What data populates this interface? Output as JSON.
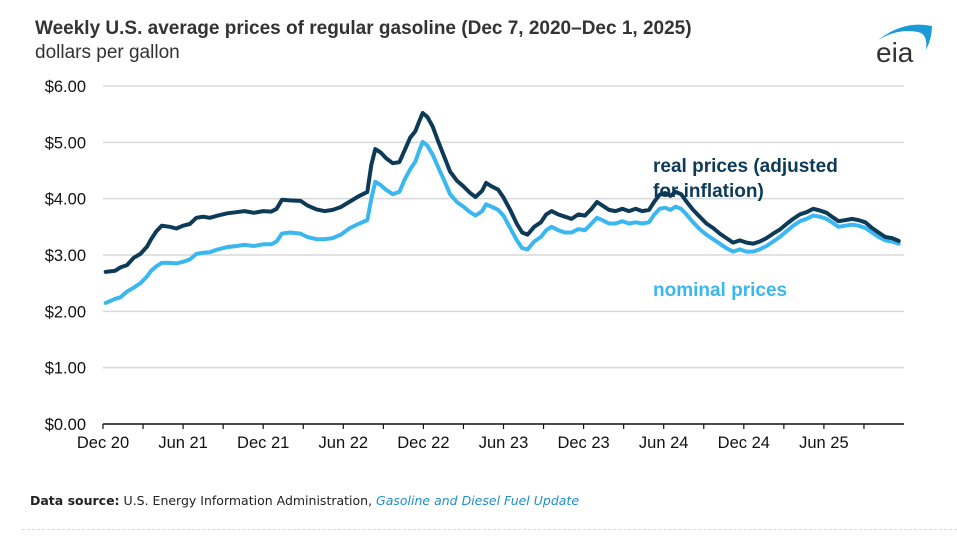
{
  "header": {
    "title": "Weekly U.S. average prices of regular gasoline (Dec 7, 2020–Dec 1, 2025)",
    "subtitle": "dollars per gallon",
    "logo_text": "eia"
  },
  "footer": {
    "source_label": "Data source:",
    "source_text": "U.S. Energy Information Administration,",
    "source_link": "Gasoline and Diesel Fuel Update"
  },
  "colors": {
    "real": "#0c3a57",
    "nominal": "#3bb7f0",
    "grid": "#d9d9d9",
    "axis": "#111111",
    "logo_arc": "#1a9ad9",
    "logo_text": "#333333"
  },
  "chart_data": {
    "type": "line",
    "title": "Weekly U.S. average prices of regular gasoline (Dec 7, 2020–Dec 1, 2025)",
    "ylabel": "dollars per gallon",
    "xlabel": "",
    "ylim": [
      0,
      6
    ],
    "xlim_months": [
      0,
      60
    ],
    "x_unit": "months since Dec 2020",
    "grid": true,
    "legend": "inline annotations",
    "yticks": [
      {
        "value": 0,
        "label": "$0.00"
      },
      {
        "value": 1,
        "label": "$1.00"
      },
      {
        "value": 2,
        "label": "$2.00"
      },
      {
        "value": 3,
        "label": "$3.00"
      },
      {
        "value": 4,
        "label": "$4.00"
      },
      {
        "value": 5,
        "label": "$5.00"
      },
      {
        "value": 6,
        "label": "$6.00"
      }
    ],
    "xticks": [
      {
        "month": 0,
        "label": "Dec 20"
      },
      {
        "month": 3,
        "label": ""
      },
      {
        "month": 6,
        "label": "Jun 21"
      },
      {
        "month": 9,
        "label": ""
      },
      {
        "month": 12,
        "label": "Dec 21"
      },
      {
        "month": 15,
        "label": ""
      },
      {
        "month": 18,
        "label": "Jun 22"
      },
      {
        "month": 21,
        "label": ""
      },
      {
        "month": 24,
        "label": "Dec 22"
      },
      {
        "month": 27,
        "label": ""
      },
      {
        "month": 30,
        "label": "Jun 23"
      },
      {
        "month": 33,
        "label": ""
      },
      {
        "month": 36,
        "label": "Dec 23"
      },
      {
        "month": 39,
        "label": ""
      },
      {
        "month": 42,
        "label": "Jun 24"
      },
      {
        "month": 45,
        "label": ""
      },
      {
        "month": 48,
        "label": "Dec 24"
      },
      {
        "month": 51,
        "label": ""
      },
      {
        "month": 54,
        "label": "Jun 25"
      },
      {
        "month": 57,
        "label": ""
      }
    ],
    "series": [
      {
        "name": "real prices (adjusted for inflation)",
        "color": "#0c3a57",
        "annotation": [
          "real prices (adjusted",
          "for inflation)"
        ],
        "points": [
          [
            0.2,
            2.7
          ],
          [
            0.9,
            2.72
          ],
          [
            1.3,
            2.78
          ],
          [
            1.8,
            2.82
          ],
          [
            2.3,
            2.95
          ],
          [
            2.8,
            3.02
          ],
          [
            3.3,
            3.15
          ],
          [
            3.6,
            3.28
          ],
          [
            4.0,
            3.42
          ],
          [
            4.4,
            3.52
          ],
          [
            5.0,
            3.5
          ],
          [
            5.5,
            3.47
          ],
          [
            6.0,
            3.52
          ],
          [
            6.5,
            3.55
          ],
          [
            7.0,
            3.66
          ],
          [
            7.5,
            3.68
          ],
          [
            8.0,
            3.66
          ],
          [
            8.6,
            3.7
          ],
          [
            9.3,
            3.74
          ],
          [
            10.0,
            3.76
          ],
          [
            10.6,
            3.78
          ],
          [
            11.3,
            3.75
          ],
          [
            12.0,
            3.78
          ],
          [
            12.6,
            3.77
          ],
          [
            13.0,
            3.82
          ],
          [
            13.4,
            3.98
          ],
          [
            14.0,
            3.97
          ],
          [
            14.8,
            3.96
          ],
          [
            15.3,
            3.88
          ],
          [
            16.0,
            3.81
          ],
          [
            16.6,
            3.78
          ],
          [
            17.2,
            3.8
          ],
          [
            17.8,
            3.85
          ],
          [
            18.5,
            3.95
          ],
          [
            19.2,
            4.05
          ],
          [
            19.8,
            4.12
          ],
          [
            20.1,
            4.6
          ],
          [
            20.4,
            4.88
          ],
          [
            20.8,
            4.82
          ],
          [
            21.2,
            4.72
          ],
          [
            21.7,
            4.63
          ],
          [
            22.2,
            4.65
          ],
          [
            22.6,
            4.86
          ],
          [
            23.0,
            5.08
          ],
          [
            23.4,
            5.2
          ],
          [
            23.7,
            5.38
          ],
          [
            23.95,
            5.52
          ],
          [
            24.3,
            5.45
          ],
          [
            24.7,
            5.28
          ],
          [
            25.1,
            5.02
          ],
          [
            25.6,
            4.72
          ],
          [
            26.0,
            4.48
          ],
          [
            26.5,
            4.32
          ],
          [
            27.0,
            4.22
          ],
          [
            27.5,
            4.1
          ],
          [
            27.9,
            4.03
          ],
          [
            28.4,
            4.14
          ],
          [
            28.7,
            4.28
          ],
          [
            29.1,
            4.22
          ],
          [
            29.6,
            4.16
          ],
          [
            30.0,
            4.02
          ],
          [
            30.5,
            3.8
          ],
          [
            31.0,
            3.55
          ],
          [
            31.4,
            3.4
          ],
          [
            31.8,
            3.36
          ],
          [
            32.3,
            3.5
          ],
          [
            32.8,
            3.58
          ],
          [
            33.2,
            3.72
          ],
          [
            33.6,
            3.78
          ],
          [
            34.1,
            3.72
          ],
          [
            34.6,
            3.68
          ],
          [
            35.1,
            3.64
          ],
          [
            35.6,
            3.72
          ],
          [
            36.1,
            3.7
          ],
          [
            36.6,
            3.82
          ],
          [
            37.0,
            3.94
          ],
          [
            37.4,
            3.88
          ],
          [
            37.9,
            3.8
          ],
          [
            38.4,
            3.78
          ],
          [
            38.9,
            3.82
          ],
          [
            39.4,
            3.78
          ],
          [
            39.9,
            3.82
          ],
          [
            40.4,
            3.78
          ],
          [
            40.9,
            3.8
          ],
          [
            41.3,
            3.95
          ],
          [
            41.7,
            4.07
          ],
          [
            42.1,
            4.1
          ],
          [
            42.5,
            4.05
          ],
          [
            42.9,
            4.12
          ],
          [
            43.3,
            4.08
          ],
          [
            43.7,
            3.95
          ],
          [
            44.2,
            3.8
          ],
          [
            44.7,
            3.68
          ],
          [
            45.2,
            3.56
          ],
          [
            45.7,
            3.48
          ],
          [
            46.2,
            3.38
          ],
          [
            46.7,
            3.3
          ],
          [
            47.2,
            3.22
          ],
          [
            47.7,
            3.26
          ],
          [
            48.2,
            3.22
          ],
          [
            48.7,
            3.2
          ],
          [
            49.2,
            3.24
          ],
          [
            49.7,
            3.3
          ],
          [
            50.2,
            3.38
          ],
          [
            50.7,
            3.45
          ],
          [
            51.2,
            3.55
          ],
          [
            51.7,
            3.64
          ],
          [
            52.2,
            3.72
          ],
          [
            52.7,
            3.76
          ],
          [
            53.2,
            3.82
          ],
          [
            53.7,
            3.79
          ],
          [
            54.2,
            3.75
          ],
          [
            54.6,
            3.68
          ],
          [
            55.1,
            3.6
          ],
          [
            55.6,
            3.62
          ],
          [
            56.1,
            3.64
          ],
          [
            56.6,
            3.62
          ],
          [
            57.1,
            3.58
          ],
          [
            57.6,
            3.48
          ],
          [
            58.1,
            3.4
          ],
          [
            58.6,
            3.32
          ],
          [
            59.1,
            3.3
          ],
          [
            59.6,
            3.25
          ]
        ]
      },
      {
        "name": "nominal prices",
        "color": "#3bb7f0",
        "annotation": [
          "nominal prices"
        ],
        "points": [
          [
            0.2,
            2.15
          ],
          [
            0.9,
            2.22
          ],
          [
            1.3,
            2.25
          ],
          [
            1.8,
            2.35
          ],
          [
            2.3,
            2.42
          ],
          [
            2.8,
            2.5
          ],
          [
            3.3,
            2.62
          ],
          [
            3.6,
            2.72
          ],
          [
            4.0,
            2.8
          ],
          [
            4.4,
            2.86
          ],
          [
            5.0,
            2.86
          ],
          [
            5.5,
            2.85
          ],
          [
            6.0,
            2.88
          ],
          [
            6.5,
            2.92
          ],
          [
            7.0,
            3.02
          ],
          [
            7.5,
            3.04
          ],
          [
            8.0,
            3.05
          ],
          [
            8.6,
            3.1
          ],
          [
            9.3,
            3.14
          ],
          [
            10.0,
            3.16
          ],
          [
            10.6,
            3.18
          ],
          [
            11.3,
            3.16
          ],
          [
            12.0,
            3.19
          ],
          [
            12.6,
            3.19
          ],
          [
            13.0,
            3.24
          ],
          [
            13.4,
            3.38
          ],
          [
            14.0,
            3.4
          ],
          [
            14.8,
            3.38
          ],
          [
            15.3,
            3.32
          ],
          [
            16.0,
            3.28
          ],
          [
            16.6,
            3.28
          ],
          [
            17.2,
            3.3
          ],
          [
            17.8,
            3.36
          ],
          [
            18.5,
            3.48
          ],
          [
            19.2,
            3.56
          ],
          [
            19.8,
            3.62
          ],
          [
            20.1,
            4.0
          ],
          [
            20.4,
            4.3
          ],
          [
            20.8,
            4.24
          ],
          [
            21.2,
            4.16
          ],
          [
            21.7,
            4.08
          ],
          [
            22.2,
            4.12
          ],
          [
            22.6,
            4.34
          ],
          [
            23.0,
            4.52
          ],
          [
            23.4,
            4.66
          ],
          [
            23.7,
            4.86
          ],
          [
            23.95,
            5.01
          ],
          [
            24.3,
            4.94
          ],
          [
            24.7,
            4.78
          ],
          [
            25.1,
            4.56
          ],
          [
            25.6,
            4.3
          ],
          [
            26.0,
            4.08
          ],
          [
            26.5,
            3.94
          ],
          [
            27.0,
            3.86
          ],
          [
            27.5,
            3.76
          ],
          [
            27.9,
            3.7
          ],
          [
            28.4,
            3.78
          ],
          [
            28.7,
            3.9
          ],
          [
            29.1,
            3.86
          ],
          [
            29.6,
            3.8
          ],
          [
            30.0,
            3.7
          ],
          [
            30.5,
            3.48
          ],
          [
            31.0,
            3.26
          ],
          [
            31.4,
            3.12
          ],
          [
            31.8,
            3.1
          ],
          [
            32.3,
            3.24
          ],
          [
            32.8,
            3.32
          ],
          [
            33.2,
            3.44
          ],
          [
            33.6,
            3.5
          ],
          [
            34.1,
            3.44
          ],
          [
            34.6,
            3.4
          ],
          [
            35.1,
            3.4
          ],
          [
            35.6,
            3.46
          ],
          [
            36.1,
            3.44
          ],
          [
            36.6,
            3.56
          ],
          [
            37.0,
            3.66
          ],
          [
            37.4,
            3.62
          ],
          [
            37.9,
            3.56
          ],
          [
            38.4,
            3.56
          ],
          [
            38.9,
            3.6
          ],
          [
            39.4,
            3.56
          ],
          [
            39.9,
            3.58
          ],
          [
            40.4,
            3.56
          ],
          [
            40.9,
            3.58
          ],
          [
            41.3,
            3.72
          ],
          [
            41.7,
            3.82
          ],
          [
            42.1,
            3.84
          ],
          [
            42.5,
            3.8
          ],
          [
            42.9,
            3.86
          ],
          [
            43.3,
            3.82
          ],
          [
            43.7,
            3.72
          ],
          [
            44.2,
            3.58
          ],
          [
            44.7,
            3.46
          ],
          [
            45.2,
            3.36
          ],
          [
            45.7,
            3.28
          ],
          [
            46.2,
            3.2
          ],
          [
            46.7,
            3.12
          ],
          [
            47.2,
            3.06
          ],
          [
            47.7,
            3.1
          ],
          [
            48.2,
            3.06
          ],
          [
            48.7,
            3.06
          ],
          [
            49.2,
            3.1
          ],
          [
            49.7,
            3.16
          ],
          [
            50.2,
            3.24
          ],
          [
            50.7,
            3.32
          ],
          [
            51.2,
            3.42
          ],
          [
            51.7,
            3.52
          ],
          [
            52.2,
            3.6
          ],
          [
            52.7,
            3.64
          ],
          [
            53.2,
            3.7
          ],
          [
            53.7,
            3.68
          ],
          [
            54.2,
            3.64
          ],
          [
            54.6,
            3.58
          ],
          [
            55.1,
            3.5
          ],
          [
            55.6,
            3.52
          ],
          [
            56.1,
            3.54
          ],
          [
            56.6,
            3.52
          ],
          [
            57.1,
            3.48
          ],
          [
            57.6,
            3.4
          ],
          [
            58.1,
            3.32
          ],
          [
            58.6,
            3.26
          ],
          [
            59.1,
            3.24
          ],
          [
            59.6,
            3.2
          ]
        ]
      }
    ]
  }
}
